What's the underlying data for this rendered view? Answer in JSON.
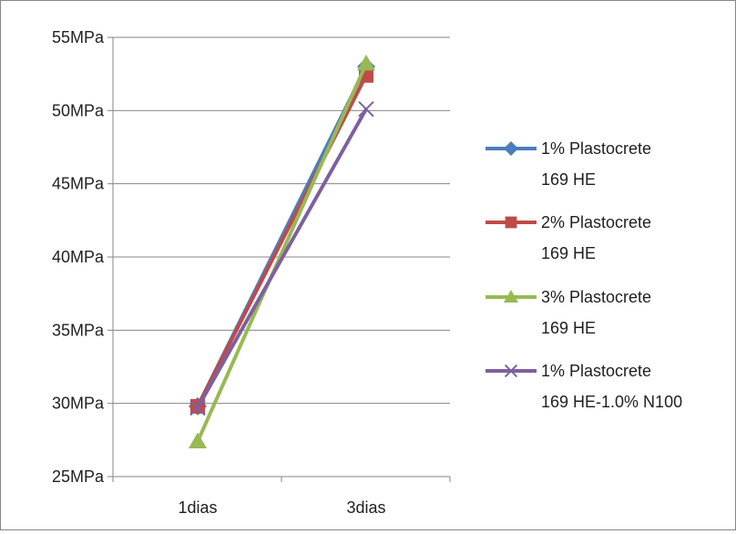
{
  "chart_data": {
    "type": "line",
    "title": "",
    "xlabel": "",
    "ylabel": "",
    "categories": [
      "1dias",
      "3dias"
    ],
    "ylim": [
      25,
      55
    ],
    "ystep": 5,
    "y_unit": "MPa",
    "y_tick_labels": [
      "25MPa",
      "30MPa",
      "35MPa",
      "40MPa",
      "45MPa",
      "50MPa",
      "55MPa"
    ],
    "grid": "horizontal",
    "legend_position": "right",
    "series": [
      {
        "name": "1% Plastocrete 169 HE",
        "name_lines": [
          "1% Plastocrete",
          "169 HE"
        ],
        "values": [
          29.8,
          53.0
        ],
        "color": "#4a7ebb",
        "marker": "diamond"
      },
      {
        "name": "2% Plastocrete 169 HE",
        "name_lines": [
          "2% Plastocrete",
          "169 HE"
        ],
        "values": [
          29.8,
          52.4
        ],
        "color": "#be4b48",
        "marker": "square"
      },
      {
        "name": "3% Plastocrete 169 HE",
        "name_lines": [
          "3% Plastocrete",
          "169 HE"
        ],
        "values": [
          27.4,
          53.2
        ],
        "color": "#98b954",
        "marker": "triangle"
      },
      {
        "name": "1% Plastocrete 169 HE-1.0% N100",
        "name_lines": [
          "1% Plastocrete",
          "169 HE-1.0% N100"
        ],
        "values": [
          29.7,
          50.1
        ],
        "color": "#7d60a0",
        "marker": "x"
      }
    ]
  }
}
